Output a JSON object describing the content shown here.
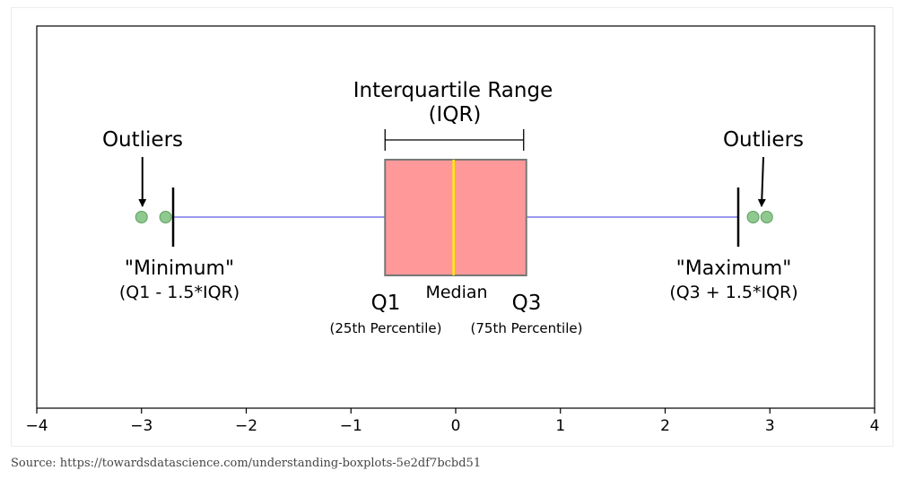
{
  "chart_data": {
    "type": "boxplot",
    "xlim": [
      -4,
      4
    ],
    "x_ticks": [
      -4,
      -3,
      -2,
      -1,
      0,
      1,
      2,
      3,
      4
    ],
    "x_tick_labels": [
      "−4",
      "−3",
      "−2",
      "−1",
      "0",
      "1",
      "2",
      "3",
      "4"
    ],
    "box": {
      "q1": -0.6745,
      "median": -0.02,
      "q3": 0.6745,
      "whisker_low": -2.698,
      "whisker_high": 2.698
    },
    "outliers": [
      -3.0,
      -2.77,
      2.84,
      2.97
    ],
    "colors": {
      "box_fill": "#ff9999",
      "box_edge": "#777777",
      "median": "#ffee00",
      "whisker": "#9999ee",
      "cap": "#000000",
      "outlier_fill": "#8fc98f",
      "outlier_edge": "#5e9e5e"
    },
    "annotations": {
      "iqr_title_line1": "Interquartile Range",
      "iqr_title_line2": "(IQR)",
      "outliers_left": "Outliers",
      "outliers_right": "Outliers",
      "minimum": "\"Minimum\"",
      "minimum_formula": "(Q1 - 1.5*IQR)",
      "maximum": "\"Maximum\"",
      "maximum_formula": "(Q3 + 1.5*IQR)",
      "q1": "Q1",
      "q1_sub": "(25th Percentile)",
      "median": "Median",
      "q3": "Q3",
      "q3_sub": "(75th Percentile)"
    }
  },
  "caption": "Source: https://towardsdatascience.com/understanding-boxplots-5e2df7bcbd51"
}
